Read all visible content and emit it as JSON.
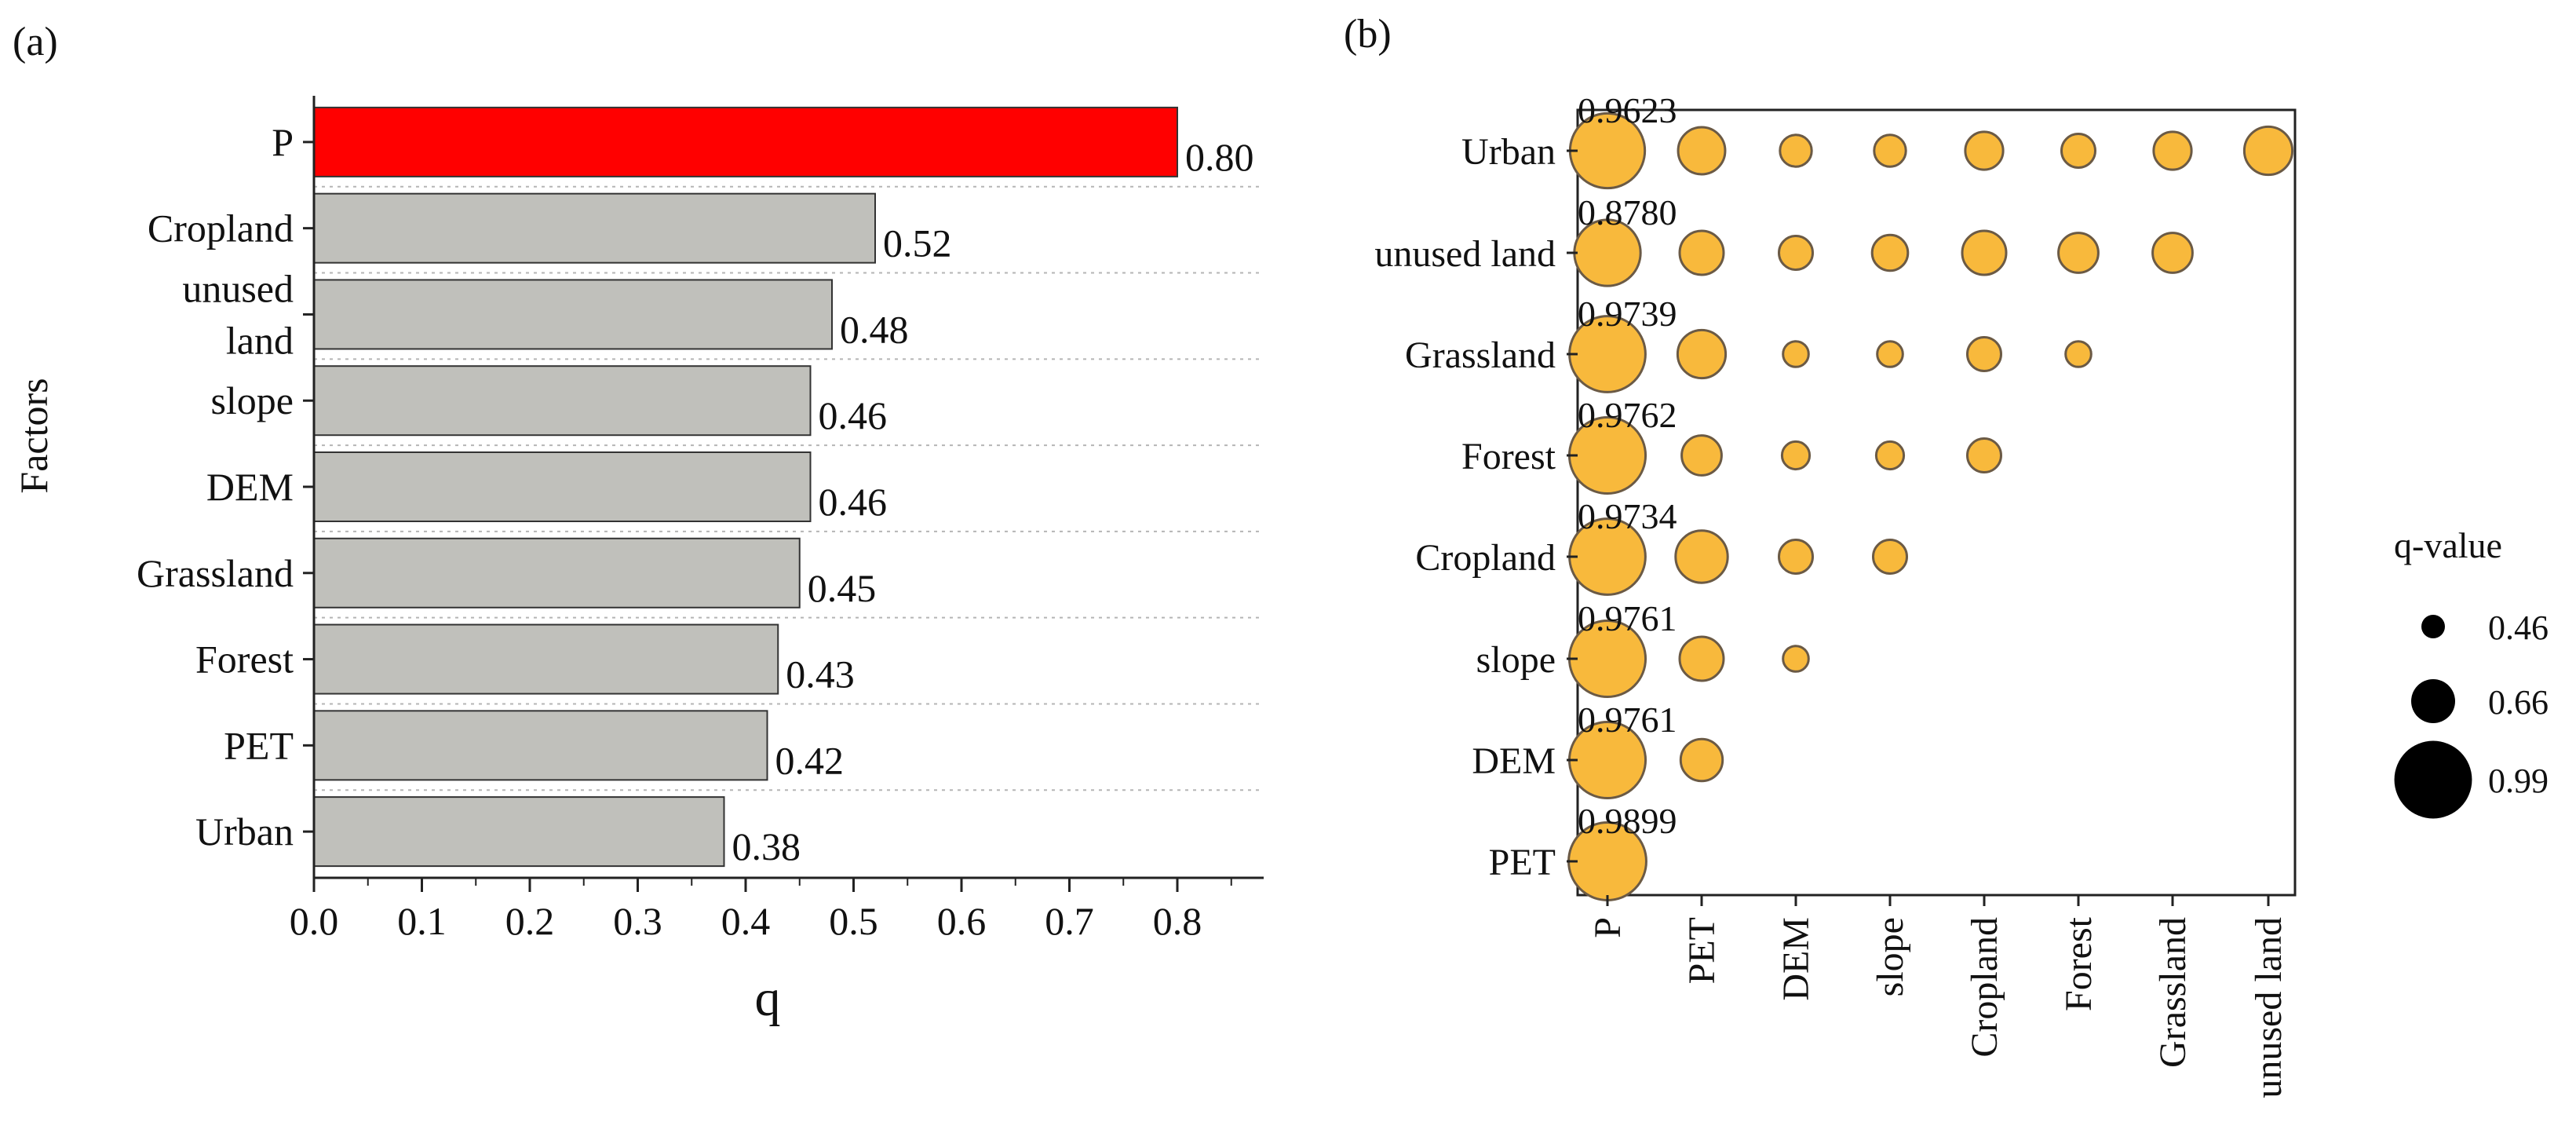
{
  "panels": {
    "a_label": "(a)",
    "b_label": "(b)"
  },
  "chart_data": [
    {
      "type": "bar",
      "orientation": "horizontal",
      "xlabel": "q",
      "ylabel": "Factors",
      "xlim": [
        0,
        0.88
      ],
      "xticks": [
        "0.0",
        "0.1",
        "0.2",
        "0.3",
        "0.4",
        "0.5",
        "0.6",
        "0.7",
        "0.8"
      ],
      "categories": [
        {
          "label": [
            "P"
          ],
          "value": 0.8
        },
        {
          "label": [
            "Cropland"
          ],
          "value": 0.52
        },
        {
          "label": [
            "unused",
            "land"
          ],
          "value": 0.48
        },
        {
          "label": [
            "slope"
          ],
          "value": 0.46
        },
        {
          "label": [
            "DEM"
          ],
          "value": 0.46
        },
        {
          "label": [
            "Grassland"
          ],
          "value": 0.45
        },
        {
          "label": [
            "Forest"
          ],
          "value": 0.43
        },
        {
          "label": [
            "PET"
          ],
          "value": 0.42
        },
        {
          "label": [
            "Urban"
          ],
          "value": 0.38
        }
      ],
      "value_labels": [
        "0.80",
        "0.52",
        "0.48",
        "0.46",
        "0.46",
        "0.45",
        "0.43",
        "0.42",
        "0.38"
      ],
      "highlight_color": "#ff0000",
      "bar_color": "#c0c0bb"
    },
    {
      "type": "scatter",
      "subtype": "interaction-bubble-matrix",
      "rows": [
        "Urban",
        "unused land",
        "Grassland",
        "Forest",
        "Cropland",
        "slope",
        "DEM",
        "PET"
      ],
      "cols": [
        "P",
        "PET",
        "DEM",
        "slope",
        "Cropland",
        "Forest",
        "Grassland",
        "unused land"
      ],
      "values": [
        [
          0.9623,
          0.69,
          0.54,
          0.54,
          0.6,
          0.56,
          0.6,
          0.7
        ],
        [
          0.878,
          0.66,
          0.56,
          0.58,
          0.66,
          0.62,
          0.62,
          null
        ],
        [
          0.9739,
          0.7,
          0.48,
          0.48,
          0.56,
          0.48,
          null,
          null
        ],
        [
          0.9762,
          0.62,
          0.5,
          0.5,
          0.56,
          null,
          null,
          null
        ],
        [
          0.9734,
          0.74,
          0.56,
          0.56,
          null,
          null,
          null,
          null
        ],
        [
          0.9761,
          0.66,
          0.48,
          null,
          null,
          null,
          null,
          null
        ],
        [
          0.9761,
          0.64,
          null,
          null,
          null,
          null,
          null,
          null
        ],
        [
          0.9899,
          null,
          null,
          null,
          null,
          null,
          null,
          null
        ]
      ],
      "annotations": [
        "0.9623",
        "0.8780",
        "0.9739",
        "0.9762",
        "0.9734",
        "0.9761",
        "0.9761",
        "0.9899"
      ],
      "legend": {
        "title": "q-value",
        "entries": [
          {
            "label": "0.46",
            "value": 0.46
          },
          {
            "label": "0.66",
            "value": 0.66
          },
          {
            "label": "0.99",
            "value": 0.99
          }
        ]
      },
      "bubble_color": "#f8b93c",
      "bubble_stroke": "#6b5a45"
    }
  ]
}
